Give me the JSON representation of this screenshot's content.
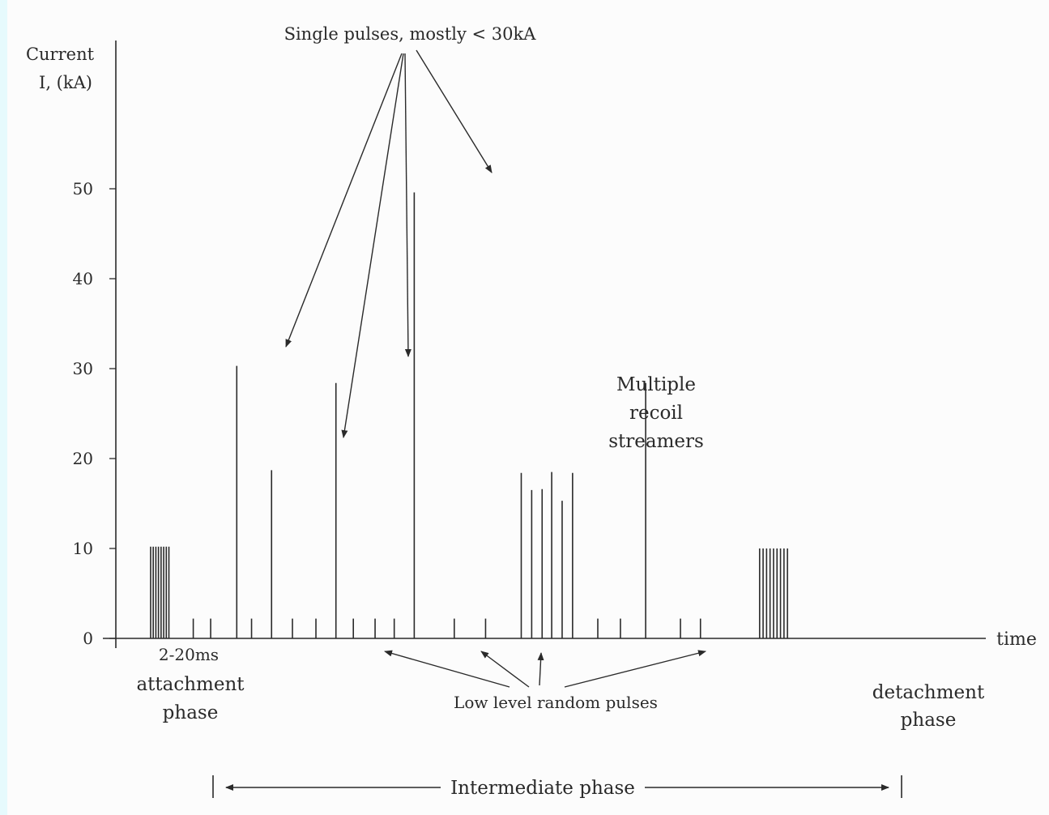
{
  "chart_data": {
    "type": "bar",
    "ylabel_line1": "Current",
    "ylabel_line2": "I, (kA)",
    "xlabel": "time",
    "ylim": [
      0,
      60
    ],
    "yticks": [
      "0",
      "10",
      "20",
      "30",
      "40",
      "50"
    ],
    "ytick_values": [
      0,
      10,
      20,
      30,
      40,
      50
    ],
    "pulses": [
      {
        "t": 0.04,
        "v": 10.2
      },
      {
        "t": 0.043,
        "v": 10.2
      },
      {
        "t": 0.046,
        "v": 10.2
      },
      {
        "t": 0.049,
        "v": 10.2
      },
      {
        "t": 0.052,
        "v": 10.2
      },
      {
        "t": 0.055,
        "v": 10.2
      },
      {
        "t": 0.058,
        "v": 10.2
      },
      {
        "t": 0.061,
        "v": 10.2
      },
      {
        "t": 0.089,
        "v": 2.2
      },
      {
        "t": 0.109,
        "v": 2.2
      },
      {
        "t": 0.139,
        "v": 30.3
      },
      {
        "t": 0.156,
        "v": 2.2
      },
      {
        "t": 0.179,
        "v": 18.7
      },
      {
        "t": 0.203,
        "v": 2.2
      },
      {
        "t": 0.23,
        "v": 2.2
      },
      {
        "t": 0.253,
        "v": 28.4
      },
      {
        "t": 0.273,
        "v": 2.2
      },
      {
        "t": 0.298,
        "v": 2.2
      },
      {
        "t": 0.32,
        "v": 2.2
      },
      {
        "t": 0.343,
        "v": 49.6
      },
      {
        "t": 0.389,
        "v": 2.2
      },
      {
        "t": 0.425,
        "v": 2.2
      },
      {
        "t": 0.466,
        "v": 18.4
      },
      {
        "t": 0.478,
        "v": 16.5
      },
      {
        "t": 0.49,
        "v": 16.6
      },
      {
        "t": 0.501,
        "v": 18.5
      },
      {
        "t": 0.513,
        "v": 15.3
      },
      {
        "t": 0.525,
        "v": 18.4
      },
      {
        "t": 0.554,
        "v": 2.2
      },
      {
        "t": 0.58,
        "v": 2.2
      },
      {
        "t": 0.609,
        "v": 28.4
      },
      {
        "t": 0.649,
        "v": 2.2
      },
      {
        "t": 0.672,
        "v": 2.2
      },
      {
        "t": 0.74,
        "v": 10.0
      },
      {
        "t": 0.744,
        "v": 10.0
      },
      {
        "t": 0.748,
        "v": 10.0
      },
      {
        "t": 0.752,
        "v": 10.0
      },
      {
        "t": 0.756,
        "v": 10.0
      },
      {
        "t": 0.76,
        "v": 10.0
      },
      {
        "t": 0.764,
        "v": 10.0
      },
      {
        "t": 0.768,
        "v": 10.0
      },
      {
        "t": 0.772,
        "v": 10.0
      }
    ],
    "annotations": {
      "single_pulses": "Single pulses, mostly < 30kA",
      "multiple_recoil_line1": "Multiple",
      "multiple_recoil_line2": "recoil",
      "multiple_recoil_line3": "streamers",
      "low_level": "Low level random pulses",
      "duration": "2-20ms",
      "attachment_line1": "attachment",
      "attachment_line2": "phase",
      "detachment_line1": "detachment",
      "detachment_line2": "phase",
      "intermediate": "Intermediate phase"
    }
  },
  "colors": {
    "ink": "#2a2a2a",
    "paper": "#fcfcfc",
    "border": "#e6fafd"
  }
}
